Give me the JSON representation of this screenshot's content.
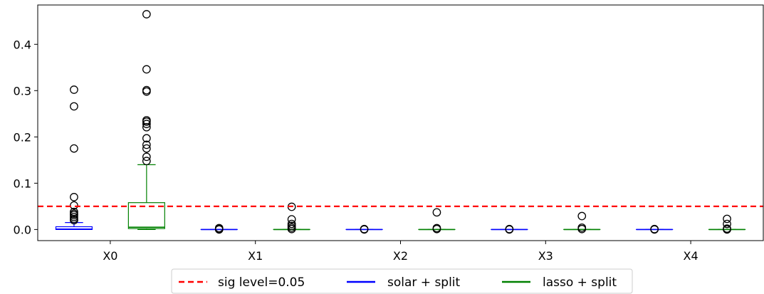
{
  "chart_data": {
    "type": "box",
    "categories": [
      "X0",
      "X1",
      "X2",
      "X3",
      "X4"
    ],
    "ylim": [
      -0.024,
      0.485
    ],
    "yticks": [
      0.0,
      0.1,
      0.2,
      0.3,
      0.4
    ],
    "ytick_labels": [
      "0.0",
      "0.1",
      "0.2",
      "0.3",
      "0.4"
    ],
    "grid": false,
    "legend_position": "bottom-center",
    "threshold": {
      "name": "sig level=0.05",
      "value": 0.05,
      "color": "#ff0000"
    },
    "series": [
      {
        "name": "solar + split",
        "color": "#0000ff",
        "boxes": [
          {
            "q1": 0.0,
            "median": 0.001,
            "q3": 0.006,
            "whisker_low": 0.0,
            "whisker_high": 0.015,
            "outliers": [
              0.302,
              0.266,
              0.175,
              0.07,
              0.052,
              0.038,
              0.034,
              0.031,
              0.027,
              0.023,
              0.02
            ]
          },
          {
            "q1": 0.0,
            "median": 0.0,
            "q3": 0.0,
            "whisker_low": 0.0,
            "whisker_high": 0.0,
            "outliers": [
              0.003,
              0.001,
              0.0
            ]
          },
          {
            "q1": 0.0,
            "median": 0.0,
            "q3": 0.0,
            "whisker_low": 0.0,
            "whisker_high": 0.0,
            "outliers": [
              0.001,
              0.0
            ]
          },
          {
            "q1": 0.0,
            "median": 0.0,
            "q3": 0.0,
            "whisker_low": 0.0,
            "whisker_high": 0.0,
            "outliers": [
              0.001,
              0.0
            ]
          },
          {
            "q1": 0.0,
            "median": 0.0,
            "q3": 0.0,
            "whisker_low": 0.0,
            "whisker_high": 0.0,
            "outliers": [
              0.001,
              0.0
            ]
          }
        ]
      },
      {
        "name": "lasso + split",
        "color": "#008000",
        "boxes": [
          {
            "q1": 0.002,
            "median": 0.005,
            "q3": 0.058,
            "whisker_low": 0.0,
            "whisker_high": 0.14,
            "outliers": [
              0.465,
              0.346,
              0.301,
              0.298,
              0.236,
              0.233,
              0.228,
              0.221,
              0.197,
              0.183,
              0.175,
              0.157,
              0.148
            ]
          },
          {
            "q1": 0.0,
            "median": 0.0,
            "q3": 0.0,
            "whisker_low": 0.0,
            "whisker_high": 0.0,
            "outliers": [
              0.049,
              0.022,
              0.012,
              0.008,
              0.004,
              0.001
            ]
          },
          {
            "q1": 0.0,
            "median": 0.0,
            "q3": 0.0,
            "whisker_low": 0.0,
            "whisker_high": 0.0,
            "outliers": [
              0.037,
              0.003,
              0.001
            ]
          },
          {
            "q1": 0.0,
            "median": 0.0,
            "q3": 0.0,
            "whisker_low": 0.0,
            "whisker_high": 0.0,
            "outliers": [
              0.029,
              0.004,
              0.001
            ]
          },
          {
            "q1": 0.0,
            "median": 0.0,
            "q3": 0.0,
            "whisker_low": 0.0,
            "whisker_high": 0.0,
            "outliers": [
              0.023,
              0.012,
              0.002,
              0.0
            ]
          }
        ]
      }
    ]
  }
}
